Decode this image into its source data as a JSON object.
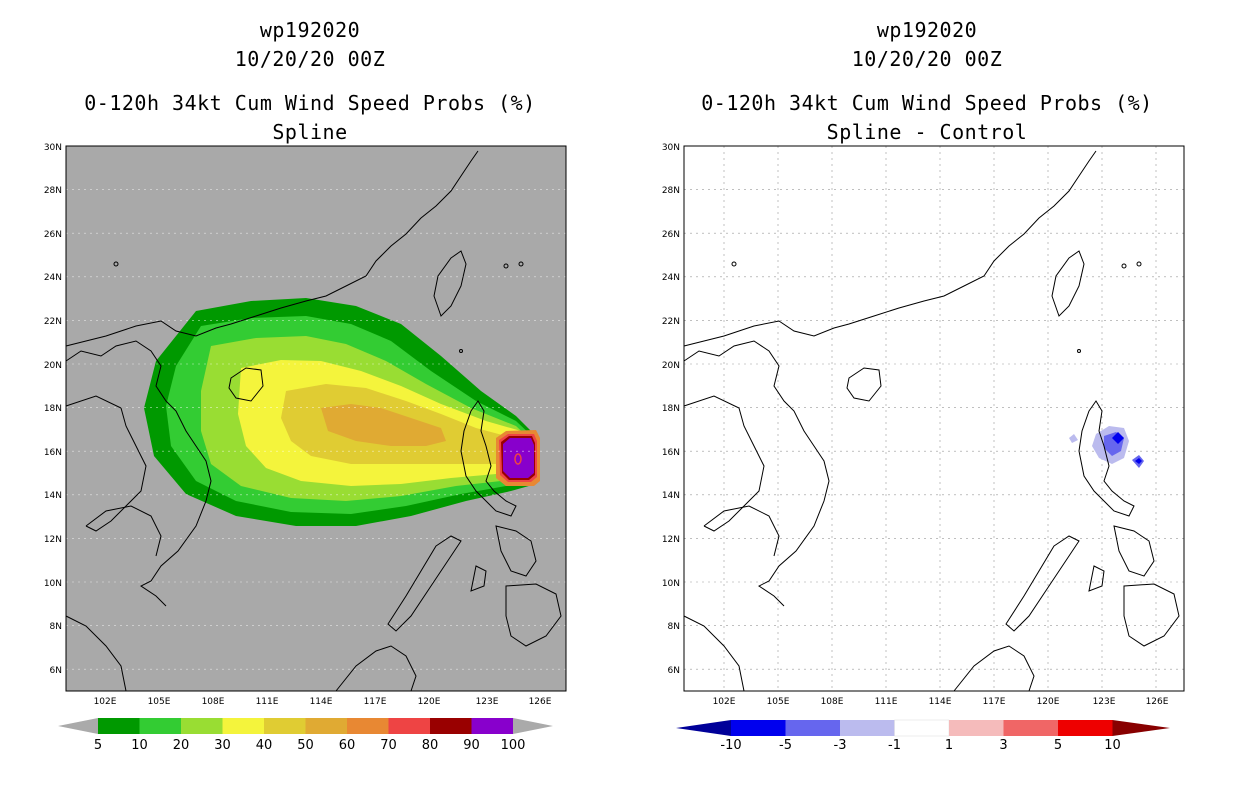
{
  "left": {
    "storm_id": "wp192020",
    "datetime": "10/20/20 00Z",
    "product": "0-120h 34kt Cum Wind Speed Probs (%)",
    "subtitle": "Spline",
    "lat_labels": [
      "30N",
      "28N",
      "26N",
      "24N",
      "22N",
      "20N",
      "18N",
      "16N",
      "14N",
      "12N",
      "10N",
      "8N",
      "6N"
    ],
    "lon_labels": [
      "102E",
      "105E",
      "108E",
      "111E",
      "114E",
      "117E",
      "120E",
      "123E",
      "126E"
    ],
    "colorbar": {
      "labels": [
        "5",
        "10",
        "20",
        "30",
        "40",
        "50",
        "60",
        "70",
        "80",
        "90",
        "100"
      ],
      "colors": [
        "#009900",
        "#33cc33",
        "#99dd33",
        "#f4f43c",
        "#e0cc33",
        "#e0aa33",
        "#e88833",
        "#ee4444",
        "#990000",
        "#8800cc"
      ],
      "under_color": "#aaaaaa",
      "over_color": "#aaaaaa"
    },
    "background_color": "#a9a9a9"
  },
  "right": {
    "storm_id": "wp192020",
    "datetime": "10/20/20 00Z",
    "product": "0-120h 34kt Cum Wind Speed Probs (%)",
    "subtitle": "Spline - Control",
    "lat_labels": [
      "30N",
      "28N",
      "26N",
      "24N",
      "22N",
      "20N",
      "18N",
      "16N",
      "14N",
      "12N",
      "10N",
      "8N",
      "6N"
    ],
    "lon_labels": [
      "102E",
      "105E",
      "108E",
      "111E",
      "114E",
      "117E",
      "120E",
      "123E",
      "126E"
    ],
    "colorbar": {
      "labels": [
        "-10",
        "-5",
        "-3",
        "-1",
        "1",
        "3",
        "5",
        "10"
      ],
      "colors": [
        "#0000ee",
        "#6666ee",
        "#bbbbee",
        "#ffffff",
        "#f5bbbb",
        "#f06666",
        "#ee0000"
      ],
      "under_color": "#000099",
      "over_color": "#880000"
    },
    "background_color": "#ffffff"
  }
}
